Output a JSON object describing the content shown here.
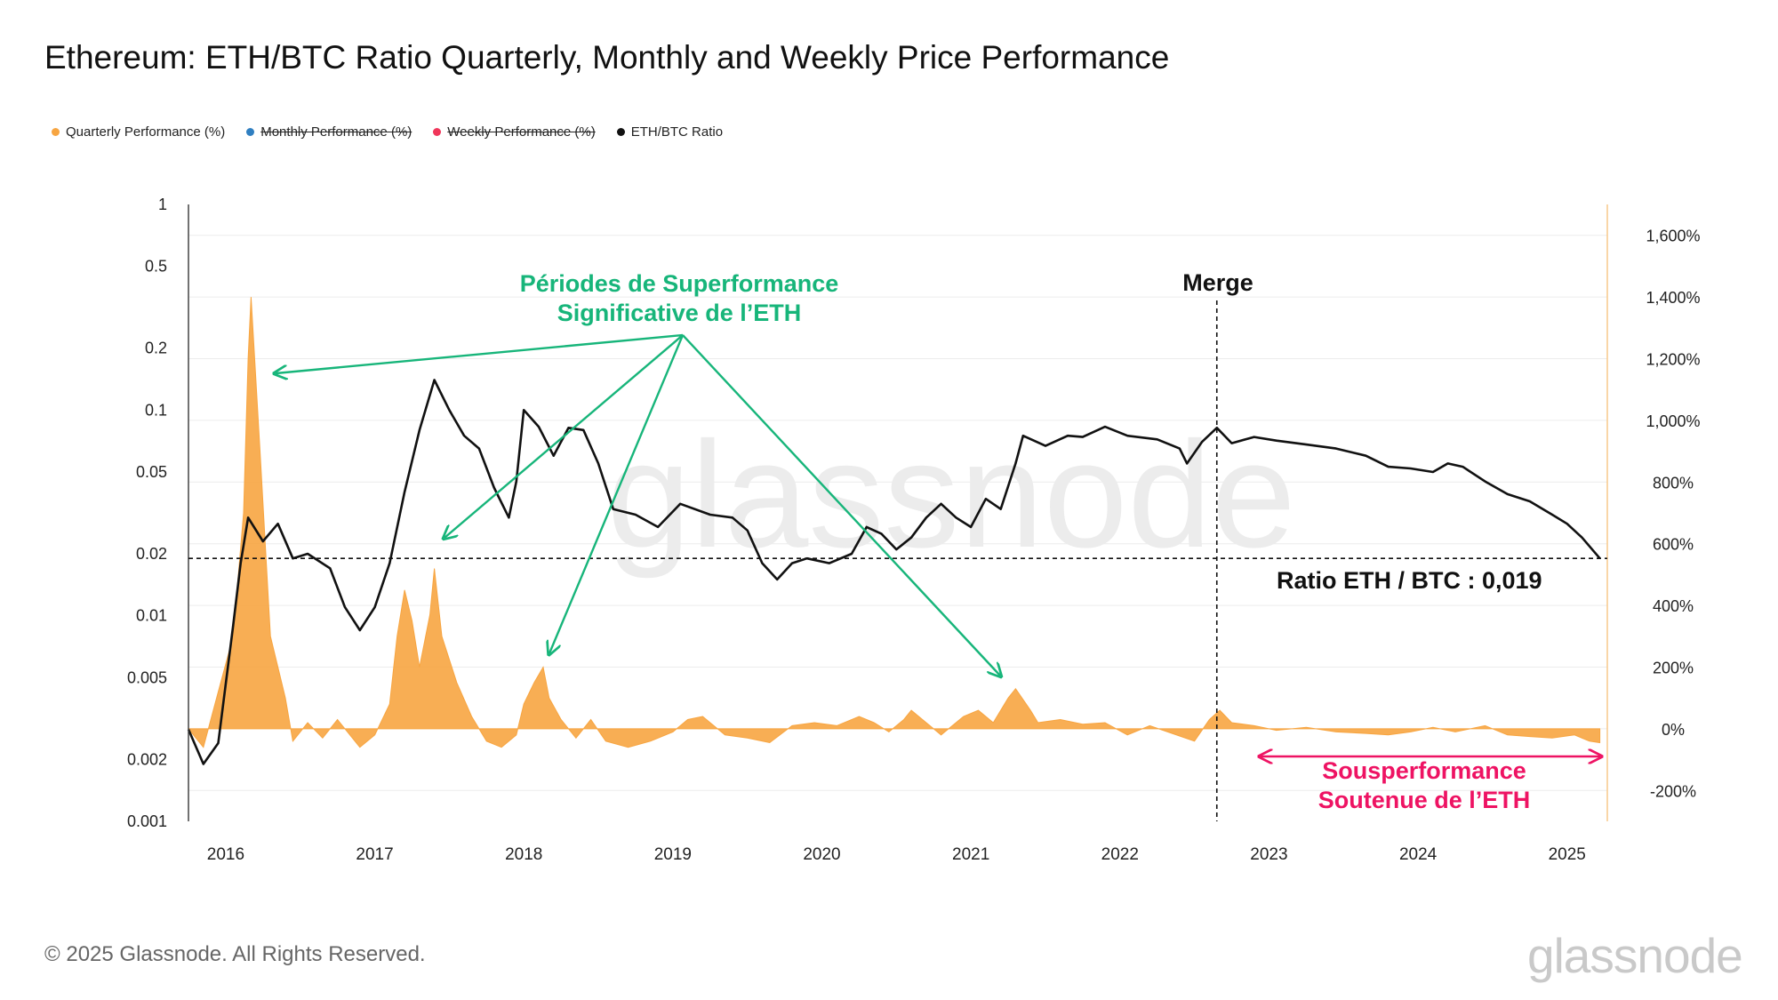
{
  "title": "Ethereum: ETH/BTC Ratio Quarterly, Monthly and Weekly Price Performance",
  "legend": [
    {
      "label": "Quarterly Performance (%)",
      "color": "#f7a541",
      "active": true
    },
    {
      "label": "Monthly Performance (%)",
      "color": "#2f7fc1",
      "active": false
    },
    {
      "label": "Weekly Performance (%)",
      "color": "#f0365a",
      "active": false
    },
    {
      "label": "ETH/BTC Ratio",
      "color": "#111111",
      "active": true
    }
  ],
  "chart_data": {
    "type": "line",
    "left_axis": {
      "scale": "log",
      "ticks": [
        "1",
        "0.5",
        "0.2",
        "0.1",
        "0.05",
        "0.02",
        "0.01",
        "0.005",
        "0.002",
        "0.001"
      ],
      "range": [
        0.001,
        1
      ]
    },
    "right_axis": {
      "ticks": [
        "1,600%",
        "1,400%",
        "1,200%",
        "1,000%",
        "800%",
        "600%",
        "400%",
        "200%",
        "0%",
        "-200%"
      ],
      "range": [
        -300,
        1700
      ]
    },
    "x_ticks": [
      "2016",
      "2017",
      "2018",
      "2019",
      "2020",
      "2021",
      "2022",
      "2023",
      "2024",
      "2025"
    ],
    "grid": "horizontal",
    "series": [
      {
        "name": "ETH/BTC Ratio",
        "axis": "left",
        "color": "#111111",
        "points": [
          [
            2015.8,
            0.0028
          ],
          [
            2015.9,
            0.0019
          ],
          [
            2016.0,
            0.0024
          ],
          [
            2016.1,
            0.009
          ],
          [
            2016.15,
            0.018
          ],
          [
            2016.2,
            0.03
          ],
          [
            2016.3,
            0.023
          ],
          [
            2016.4,
            0.028
          ],
          [
            2016.5,
            0.019
          ],
          [
            2016.6,
            0.02
          ],
          [
            2016.75,
            0.017
          ],
          [
            2016.85,
            0.011
          ],
          [
            2016.95,
            0.0085
          ],
          [
            2017.05,
            0.011
          ],
          [
            2017.15,
            0.018
          ],
          [
            2017.25,
            0.04
          ],
          [
            2017.35,
            0.08
          ],
          [
            2017.45,
            0.14
          ],
          [
            2017.55,
            0.1
          ],
          [
            2017.65,
            0.075
          ],
          [
            2017.75,
            0.065
          ],
          [
            2017.85,
            0.042
          ],
          [
            2017.95,
            0.03
          ],
          [
            2018.0,
            0.045
          ],
          [
            2018.05,
            0.1
          ],
          [
            2018.15,
            0.083
          ],
          [
            2018.25,
            0.06
          ],
          [
            2018.35,
            0.082
          ],
          [
            2018.45,
            0.08
          ],
          [
            2018.55,
            0.055
          ],
          [
            2018.65,
            0.033
          ],
          [
            2018.8,
            0.031
          ],
          [
            2018.95,
            0.027
          ],
          [
            2019.1,
            0.035
          ],
          [
            2019.3,
            0.031
          ],
          [
            2019.45,
            0.03
          ],
          [
            2019.55,
            0.026
          ],
          [
            2019.65,
            0.018
          ],
          [
            2019.75,
            0.015
          ],
          [
            2019.85,
            0.018
          ],
          [
            2019.95,
            0.019
          ],
          [
            2020.1,
            0.018
          ],
          [
            2020.25,
            0.02
          ],
          [
            2020.35,
            0.027
          ],
          [
            2020.45,
            0.025
          ],
          [
            2020.55,
            0.021
          ],
          [
            2020.65,
            0.024
          ],
          [
            2020.75,
            0.03
          ],
          [
            2020.85,
            0.035
          ],
          [
            2020.95,
            0.03
          ],
          [
            2021.05,
            0.027
          ],
          [
            2021.15,
            0.037
          ],
          [
            2021.25,
            0.033
          ],
          [
            2021.35,
            0.055
          ],
          [
            2021.4,
            0.075
          ],
          [
            2021.55,
            0.067
          ],
          [
            2021.7,
            0.075
          ],
          [
            2021.8,
            0.074
          ],
          [
            2021.95,
            0.083
          ],
          [
            2022.1,
            0.075
          ],
          [
            2022.3,
            0.072
          ],
          [
            2022.45,
            0.065
          ],
          [
            2022.5,
            0.055
          ],
          [
            2022.6,
            0.07
          ],
          [
            2022.7,
            0.082
          ],
          [
            2022.8,
            0.069
          ],
          [
            2022.95,
            0.074
          ],
          [
            2023.1,
            0.071
          ],
          [
            2023.3,
            0.068
          ],
          [
            2023.5,
            0.065
          ],
          [
            2023.7,
            0.06
          ],
          [
            2023.85,
            0.053
          ],
          [
            2024.0,
            0.052
          ],
          [
            2024.15,
            0.05
          ],
          [
            2024.25,
            0.055
          ],
          [
            2024.35,
            0.053
          ],
          [
            2024.5,
            0.045
          ],
          [
            2024.65,
            0.039
          ],
          [
            2024.8,
            0.036
          ],
          [
            2024.95,
            0.031
          ],
          [
            2025.05,
            0.028
          ],
          [
            2025.15,
            0.024
          ],
          [
            2025.27,
            0.019
          ]
        ]
      },
      {
        "name": "Quarterly Performance (%)",
        "axis": "right",
        "color": "#f7a541",
        "points": [
          [
            2015.8,
            0
          ],
          [
            2015.9,
            -60
          ],
          [
            2016.0,
            120
          ],
          [
            2016.1,
            300
          ],
          [
            2016.17,
            700
          ],
          [
            2016.2,
            1200
          ],
          [
            2016.22,
            1400
          ],
          [
            2016.28,
            900
          ],
          [
            2016.35,
            300
          ],
          [
            2016.45,
            100
          ],
          [
            2016.5,
            -40
          ],
          [
            2016.6,
            20
          ],
          [
            2016.7,
            -30
          ],
          [
            2016.8,
            30
          ],
          [
            2016.95,
            -60
          ],
          [
            2017.05,
            -20
          ],
          [
            2017.15,
            80
          ],
          [
            2017.2,
            300
          ],
          [
            2017.25,
            450
          ],
          [
            2017.3,
            350
          ],
          [
            2017.35,
            200
          ],
          [
            2017.42,
            370
          ],
          [
            2017.45,
            520
          ],
          [
            2017.5,
            300
          ],
          [
            2017.6,
            150
          ],
          [
            2017.7,
            40
          ],
          [
            2017.8,
            -40
          ],
          [
            2017.9,
            -60
          ],
          [
            2018.0,
            -20
          ],
          [
            2018.05,
            80
          ],
          [
            2018.12,
            150
          ],
          [
            2018.18,
            200
          ],
          [
            2018.22,
            100
          ],
          [
            2018.3,
            30
          ],
          [
            2018.4,
            -30
          ],
          [
            2018.5,
            30
          ],
          [
            2018.6,
            -40
          ],
          [
            2018.75,
            -60
          ],
          [
            2018.9,
            -40
          ],
          [
            2019.05,
            -10
          ],
          [
            2019.15,
            30
          ],
          [
            2019.25,
            40
          ],
          [
            2019.4,
            -20
          ],
          [
            2019.55,
            -30
          ],
          [
            2019.7,
            -45
          ],
          [
            2019.85,
            10
          ],
          [
            2020.0,
            20
          ],
          [
            2020.15,
            10
          ],
          [
            2020.3,
            40
          ],
          [
            2020.4,
            20
          ],
          [
            2020.5,
            -10
          ],
          [
            2020.6,
            30
          ],
          [
            2020.65,
            60
          ],
          [
            2020.75,
            20
          ],
          [
            2020.85,
            -20
          ],
          [
            2021.0,
            40
          ],
          [
            2021.1,
            60
          ],
          [
            2021.2,
            20
          ],
          [
            2021.3,
            100
          ],
          [
            2021.35,
            130
          ],
          [
            2021.45,
            60
          ],
          [
            2021.5,
            20
          ],
          [
            2021.65,
            30
          ],
          [
            2021.8,
            15
          ],
          [
            2021.95,
            20
          ],
          [
            2022.1,
            -20
          ],
          [
            2022.25,
            10
          ],
          [
            2022.4,
            -15
          ],
          [
            2022.55,
            -40
          ],
          [
            2022.65,
            30
          ],
          [
            2022.72,
            60
          ],
          [
            2022.8,
            20
          ],
          [
            2022.95,
            10
          ],
          [
            2023.1,
            -5
          ],
          [
            2023.3,
            5
          ],
          [
            2023.5,
            -10
          ],
          [
            2023.7,
            -15
          ],
          [
            2023.85,
            -20
          ],
          [
            2024.0,
            -10
          ],
          [
            2024.15,
            5
          ],
          [
            2024.3,
            -10
          ],
          [
            2024.5,
            10
          ],
          [
            2024.65,
            -20
          ],
          [
            2024.8,
            -25
          ],
          [
            2024.95,
            -30
          ],
          [
            2025.1,
            -20
          ],
          [
            2025.2,
            -40
          ],
          [
            2025.27,
            -45
          ]
        ]
      }
    ]
  },
  "annotations": {
    "outperformance_line1": "Périodes de Superformance",
    "outperformance_line2": "Significative de l’ETH",
    "merge": "Merge",
    "ratio_label": "Ratio ETH / BTC : 0,019",
    "underperformance_line1": "Sousperformance",
    "underperformance_line2": "Soutenue de l’ETH",
    "outperformance_color": "#17b57a",
    "underperformance_color": "#ee1363"
  },
  "watermark": "glassnode",
  "footer": {
    "copyright": "© 2025 Glassnode. All Rights Reserved.",
    "brand": "glassnode"
  }
}
